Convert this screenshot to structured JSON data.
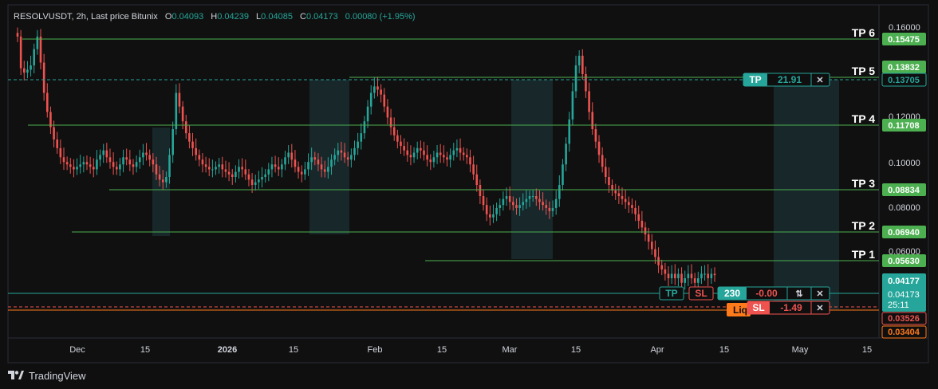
{
  "header": {
    "symbol": "RESOLVUSDT",
    "interval": "2h",
    "source": "Last price Bitunix",
    "open_label": "O",
    "open": "0.04093",
    "high_label": "H",
    "high": "0.04239",
    "low_label": "L",
    "low": "0.04085",
    "close_label": "C",
    "close": "0.04173",
    "change": "0.00080 (+1.95%)"
  },
  "branding": {
    "name": "TradingView"
  },
  "colors": {
    "up": "#26a69a",
    "down": "#ef5350",
    "tp_line": "#4caf50",
    "background": "#0f0f10",
    "accent_zone": "#1e3b40",
    "liq": "#ff7a1a"
  },
  "chart_data": {
    "type": "candlestick",
    "price_axis": {
      "ticks": [
        "0.16000",
        "0.12000",
        "0.10000",
        "0.08000",
        "0.06000"
      ],
      "scale": "log",
      "range": [
        0.0335,
        0.168
      ]
    },
    "time_axis": {
      "ticks": [
        {
          "label": "Dec",
          "t": 0
        },
        {
          "label": "15",
          "t": 14
        },
        {
          "label": "2026",
          "t": 31
        },
        {
          "label": "15",
          "t": 45
        },
        {
          "label": "Feb",
          "t": 62
        },
        {
          "label": "15",
          "t": 76
        },
        {
          "label": "Mar",
          "t": 90
        },
        {
          "label": "15",
          "t": 104
        },
        {
          "label": "Apr",
          "t": 121
        },
        {
          "label": "15",
          "t": 135
        },
        {
          "label": "May",
          "t": 151
        },
        {
          "label": "15",
          "t": 165
        }
      ]
    },
    "take_profit_levels": [
      {
        "label": "TP 6",
        "price": "0.15475"
      },
      {
        "label": "TP 5",
        "price": "0.13832"
      },
      {
        "label": "TP 4",
        "price": "0.11708"
      },
      {
        "label": "TP 3",
        "price": "0.08834"
      },
      {
        "label": "TP 2",
        "price": "0.06940"
      },
      {
        "label": "TP 1",
        "price": "0.05630"
      }
    ],
    "price_labels": [
      {
        "price": "0.13705",
        "kind": "tp-order"
      },
      {
        "price": "0.04177",
        "kind": "current"
      },
      {
        "price": "0.04173",
        "kind": "last",
        "countdown": "25:11"
      },
      {
        "price": "0.03526",
        "kind": "stop"
      },
      {
        "price": "0.03404",
        "kind": "liquidation"
      }
    ],
    "highlight_zones": [
      {
        "start": 14.5,
        "end": 17.5
      },
      {
        "start": 41.5,
        "end": 48.5
      },
      {
        "start": 87.5,
        "end": 95.5
      },
      {
        "start": 146.5,
        "end": 158.5
      }
    ],
    "candles_close": [
      0.152,
      0.128,
      0.125,
      0.127,
      0.13,
      0.142,
      0.152,
      0.132,
      0.112,
      0.101,
      0.093,
      0.087,
      0.083,
      0.079,
      0.077,
      0.076,
      0.075,
      0.074,
      0.075,
      0.076,
      0.077,
      0.076,
      0.075,
      0.074,
      0.078,
      0.08,
      0.082,
      0.079,
      0.077,
      0.075,
      0.074,
      0.076,
      0.079,
      0.078,
      0.076,
      0.075,
      0.077,
      0.079,
      0.081,
      0.08,
      0.078,
      0.076,
      0.072,
      0.07,
      0.069,
      0.071,
      0.08,
      0.092,
      0.112,
      0.104,
      0.096,
      0.09,
      0.086,
      0.083,
      0.08,
      0.078,
      0.076,
      0.075,
      0.074,
      0.074,
      0.075,
      0.076,
      0.074,
      0.073,
      0.072,
      0.071,
      0.073,
      0.075,
      0.074,
      0.072,
      0.07,
      0.068,
      0.069,
      0.07,
      0.071,
      0.072,
      0.074,
      0.076,
      0.075,
      0.074,
      0.076,
      0.079,
      0.081,
      0.078,
      0.075,
      0.073,
      0.072,
      0.074,
      0.077,
      0.079,
      0.078,
      0.076,
      0.074,
      0.073,
      0.075,
      0.078,
      0.08,
      0.082,
      0.081,
      0.079,
      0.078,
      0.08,
      0.083,
      0.086,
      0.09,
      0.096,
      0.104,
      0.112,
      0.116,
      0.114,
      0.111,
      0.104,
      0.098,
      0.093,
      0.089,
      0.086,
      0.084,
      0.082,
      0.08,
      0.079,
      0.081,
      0.083,
      0.082,
      0.08,
      0.078,
      0.077,
      0.079,
      0.081,
      0.08,
      0.079,
      0.078,
      0.08,
      0.082,
      0.083,
      0.081,
      0.08,
      0.079,
      0.076,
      0.072,
      0.068,
      0.064,
      0.061,
      0.058,
      0.057,
      0.058,
      0.06,
      0.061,
      0.063,
      0.064,
      0.062,
      0.061,
      0.06,
      0.061,
      0.062,
      0.063,
      0.064,
      0.064,
      0.063,
      0.062,
      0.061,
      0.06,
      0.059,
      0.06,
      0.063,
      0.068,
      0.076,
      0.085,
      0.097,
      0.113,
      0.13,
      0.137,
      0.124,
      0.113,
      0.101,
      0.092,
      0.086,
      0.08,
      0.075,
      0.071,
      0.068,
      0.066,
      0.065,
      0.064,
      0.063,
      0.062,
      0.061,
      0.06,
      0.058,
      0.056,
      0.054,
      0.052,
      0.05,
      0.048,
      0.046,
      0.044,
      0.043,
      0.042,
      0.041,
      0.042,
      0.041,
      0.042,
      0.04,
      0.041,
      0.042,
      0.041,
      0.04,
      0.041,
      0.042,
      0.042,
      0.041,
      0.042,
      0.0417
    ]
  },
  "trade_panel": {
    "tp_tag": "TP",
    "tp_value": "21.91",
    "close_symbol": "✕",
    "position_tp": "TP",
    "position_sl": "SL",
    "position_qty": "230",
    "position_pnl": "-0.00",
    "reverse_symbol": "⇅",
    "liq_tag": "Liq",
    "sl_tag": "SL",
    "sl_value": "-1.49"
  }
}
